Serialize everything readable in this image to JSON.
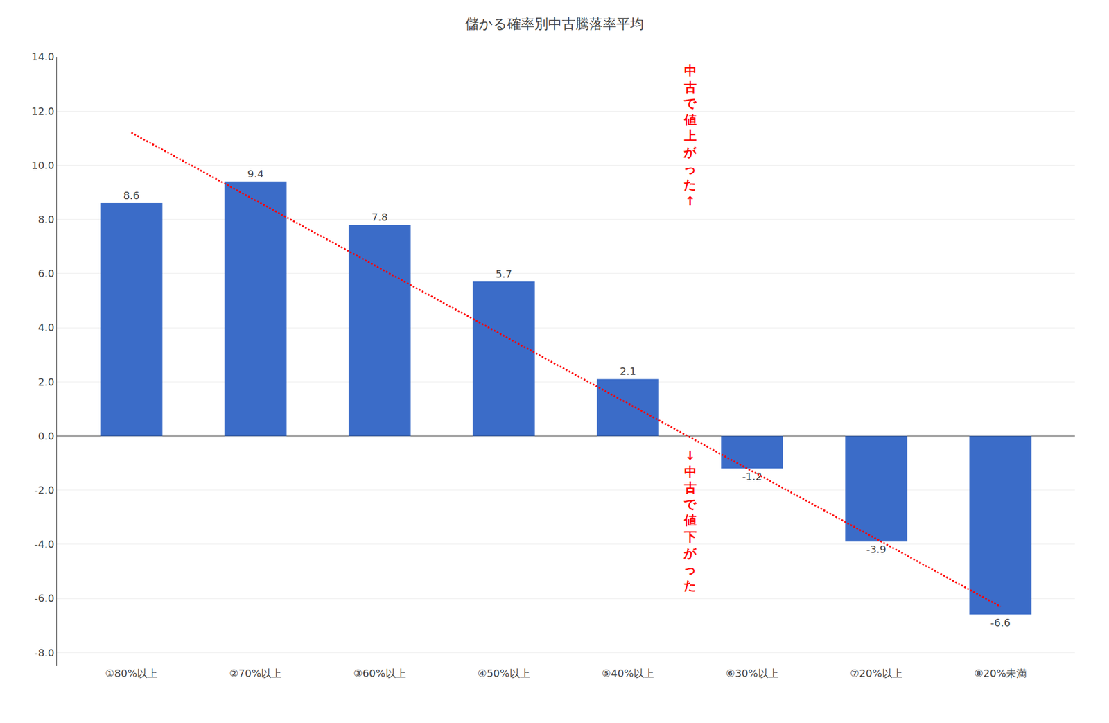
{
  "chart_data": {
    "type": "bar",
    "title": "儲かる確率別中古騰落率平均",
    "categories": [
      "①80%以上",
      "②70%以上",
      "③60%以上",
      "④50%以上",
      "⑤40%以上",
      "⑥30%以上",
      "⑦20%以上",
      "⑧20%未満"
    ],
    "values": [
      8.6,
      9.4,
      7.8,
      5.7,
      2.1,
      -1.2,
      -3.9,
      -6.6
    ],
    "color": "#3B6CC8",
    "data_labels": true,
    "ylim": [
      -8.5,
      14.0
    ],
    "yticks": [
      {
        "value": -8.0,
        "label": "-8.0"
      },
      {
        "value": -6.0,
        "label": "-6.0"
      },
      {
        "value": -4.0,
        "label": "-4.0"
      },
      {
        "value": -2.0,
        "label": "-2.0"
      },
      {
        "value": 0.0,
        "label": "0.0"
      },
      {
        "value": 2.0,
        "label": "2.0"
      },
      {
        "value": 4.0,
        "label": "4.0"
      },
      {
        "value": 6.0,
        "label": "6.0"
      },
      {
        "value": 8.0,
        "label": "8.0"
      },
      {
        "value": 10.0,
        "label": "10.0"
      },
      {
        "value": 12.0,
        "label": "12.0"
      },
      {
        "value": 14.0,
        "label": "14.0"
      }
    ],
    "grid": true,
    "trend_line": {
      "categories": [
        "①80%以上",
        "⑧20%未満"
      ],
      "values": [
        11.2,
        -6.3
      ],
      "color": "#FF0000",
      "line_style": "dotted"
    },
    "annotations": [
      {
        "text": "中\n古\nで\n値\n上\nが\nっ\nた\n↑",
        "color": "#FF0000"
      },
      {
        "text": "↓\n中\n古\nで\n値\n下\nが\nっ\nた",
        "color": "#FF0000"
      }
    ]
  }
}
